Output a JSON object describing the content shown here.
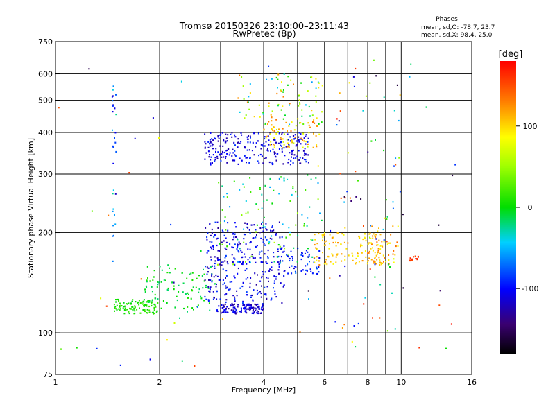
{
  "chart_data": {
    "type": "scatter",
    "title": "Tromsø 20150326 23:10:00–23:11:43",
    "subtitle": "RwPretec (8p)",
    "xlabel": "Frequency [MHz]",
    "ylabel": "Stationary phase Virtual Height [km]",
    "xscale": "log",
    "yscale": "log",
    "xlim": [
      1,
      16
    ],
    "ylim": [
      75,
      750
    ],
    "x_ticks": [
      "1",
      "2",
      "4",
      "6",
      "8",
      "10",
      "16"
    ],
    "y_ticks": [
      "75",
      "100",
      "200",
      "300",
      "400",
      "500",
      "600",
      "750"
    ],
    "grid": true,
    "stats": {
      "heading": "Phases",
      "line_o": "mean, sd,O:  -78.7, 23.7",
      "line_x": "mean, sd,X:  98.4, 25.0"
    },
    "colorbar": {
      "label": "[deg]",
      "range": [
        -180,
        180
      ],
      "ticks": [
        "100",
        "0",
        "-100"
      ],
      "colormap": "rainbow"
    },
    "clusters": [
      {
        "x": [
          1.48,
          1.98
        ],
        "y": [
          114,
          126
        ],
        "phase": [
          -5,
          20
        ],
        "n": 110
      },
      {
        "x": [
          1.8,
          2.9
        ],
        "y": [
          115,
          160
        ],
        "phase": [
          -20,
          15
        ],
        "n": 100
      },
      {
        "x": [
          2.9,
          4.0
        ],
        "y": [
          114,
          122
        ],
        "phase": [
          -135,
          -95
        ],
        "n": 130
      },
      {
        "x": [
          2.7,
          4.6
        ],
        "y": [
          122,
          215
        ],
        "phase": [
          -135,
          -80
        ],
        "n": 320
      },
      {
        "x": [
          2.7,
          5.4
        ],
        "y": [
          320,
          400
        ],
        "phase": [
          -130,
          -85
        ],
        "n": 260
      },
      {
        "x": [
          4.0,
          5.8
        ],
        "y": [
          360,
          430
        ],
        "phase": [
          60,
          140
        ],
        "n": 70
      },
      {
        "x": [
          2.9,
          5.9
        ],
        "y": [
          160,
          300
        ],
        "phase": [
          -60,
          60
        ],
        "n": 110
      },
      {
        "x": [
          3.4,
          5.9
        ],
        "y": [
          420,
          600
        ],
        "phase": [
          -60,
          140
        ],
        "n": 90
      },
      {
        "x": [
          4.4,
          5.8
        ],
        "y": [
          150,
          180
        ],
        "phase": [
          -120,
          -70
        ],
        "n": 60
      },
      {
        "x": [
          5.6,
          8.8
        ],
        "y": [
          160,
          200
        ],
        "phase": [
          80,
          130
        ],
        "n": 120
      },
      {
        "x": [
          8.0,
          9.8
        ],
        "y": [
          160,
          210
        ],
        "phase": [
          80,
          140
        ],
        "n": 50
      },
      {
        "x": [
          10.6,
          11.3
        ],
        "y": [
          163,
          170
        ],
        "phase": [
          150,
          175
        ],
        "n": 12
      },
      {
        "x": [
          6.2,
          10.0
        ],
        "y": [
          90,
          600
        ],
        "phase": [
          -160,
          170
        ],
        "n": 70
      },
      {
        "x": [
          1.0,
          15.5
        ],
        "y": [
          78,
          700
        ],
        "phase": [
          -170,
          175
        ],
        "n": 60
      },
      {
        "x": [
          1.46,
          1.5
        ],
        "y": [
          150,
          560
        ],
        "phase": [
          -120,
          -20
        ],
        "n": 30
      }
    ]
  }
}
